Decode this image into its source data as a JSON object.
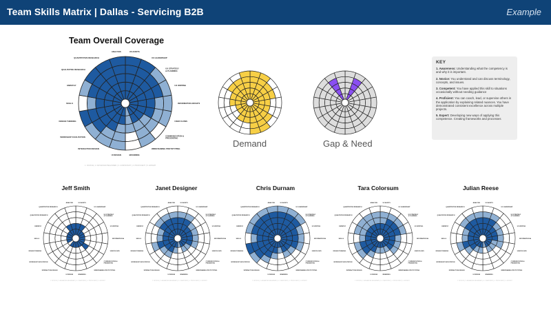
{
  "header": {
    "title": "Team Skills Matrix  |  Dallas - Servicing B2B",
    "example": "Example"
  },
  "coverage": {
    "title": "Team Overall Coverage",
    "legend": "1. NOVICE  |  2. ADVANCED BEGINNER  |  3. COMPETENT  |  4. PROFICIENT  |  5. EXPERT"
  },
  "demand": {
    "caption": "Demand"
  },
  "gap": {
    "caption": "Gap & Need"
  },
  "key": {
    "title": "KEY",
    "items": [
      {
        "head": "1. Awareness:",
        "text": " Understanding what the competency is and why it is important."
      },
      {
        "head": "2. Novice:",
        "text": " You understand and can discuss terminology, concepts, and issues."
      },
      {
        "head": "3. Competent:",
        "text": " You have applied this skill to situations occasionally without needing guidance"
      },
      {
        "head": "4. Proficient:",
        "text": " You can coach, lead, or supervise others in the application by explaining related nuances. You have demonstrated consistent excellence across multiple projects."
      },
      {
        "head": "5. Expert:",
        "text": " Developing new ways of applying this competence. Creating frameworks and processes"
      }
    ]
  },
  "skills": [
    "UX AUDITS",
    "UX LEADERSHIP",
    "UX STRATEGY & PLANNING",
    "UX WRITING",
    "INFORMATION ARCHITECTURE",
    "USER FLOWS",
    "COMMUNICATION & PRESENTING",
    "WIREFRAMING PROTOTYPING",
    "BRANDING",
    "UI DESIGN",
    "INTERACTION DESIGN",
    "WORKSHOP FACILITATION",
    "DESIGN THINKING",
    "SKILLS",
    "EMPATHY",
    "QUALITATIVE RESEARCH",
    "QUANTITATIVE RESEARCH",
    "ANALYSIS"
  ],
  "colors": {
    "dark": "#1e5aa0",
    "light": "#8fb0d3",
    "demand": "#f7cf45",
    "gap": "#dddddd",
    "need": "#8a4ff2"
  },
  "charts": {
    "coverage": {
      "dark": [
        5,
        5,
        4,
        4,
        3,
        3,
        2,
        2,
        0,
        2,
        3,
        4,
        5,
        3,
        4,
        5,
        5,
        5
      ],
      "light": [
        5,
        5,
        5,
        5,
        5,
        5,
        4,
        5,
        3,
        5,
        5,
        5,
        5,
        4,
        5,
        5,
        5,
        5
      ]
    },
    "demand": {
      "levels": [
        5,
        5,
        4,
        4,
        3,
        3,
        4,
        5,
        5,
        3,
        3,
        2,
        2,
        3,
        3,
        4,
        4,
        5
      ]
    },
    "gap": {
      "base": [
        5,
        5,
        5,
        5,
        5,
        5,
        5,
        5,
        5,
        5,
        5,
        5,
        5,
        5,
        5,
        5,
        5,
        5
      ],
      "need": [
        0,
        4,
        0,
        0,
        0,
        0,
        0,
        0,
        0,
        0,
        0,
        0,
        0,
        0,
        0,
        0,
        4,
        0
      ]
    }
  },
  "members": [
    {
      "name": "Jeff Smith",
      "dark": [
        2,
        2,
        1,
        1,
        1,
        1,
        2,
        1,
        1,
        1,
        1,
        0,
        1,
        1,
        1,
        1,
        2,
        2
      ],
      "light": [
        0,
        0,
        0,
        0,
        0,
        0,
        0,
        0,
        0,
        0,
        0,
        0,
        0,
        0,
        0,
        0,
        0,
        0
      ]
    },
    {
      "name": "Janet Designer",
      "dark": [
        3,
        3,
        2,
        2,
        2,
        2,
        1,
        1,
        0,
        1,
        2,
        2,
        3,
        2,
        2,
        3,
        3,
        3
      ],
      "light": [
        4,
        4,
        3,
        3,
        3,
        3,
        2,
        2,
        1,
        2,
        3,
        3,
        4,
        3,
        3,
        4,
        4,
        4
      ]
    },
    {
      "name": "Chris Durnam",
      "dark": [
        4,
        4,
        4,
        3,
        3,
        3,
        2,
        2,
        1,
        2,
        3,
        4,
        5,
        3,
        4,
        4,
        4,
        4
      ],
      "light": [
        5,
        5,
        5,
        4,
        4,
        4,
        3,
        3,
        2,
        3,
        4,
        5,
        5,
        4,
        5,
        5,
        5,
        5
      ]
    },
    {
      "name": "Tara Colorsum",
      "dark": [
        2,
        3,
        3,
        3,
        2,
        2,
        2,
        1,
        1,
        1,
        2,
        3,
        3,
        2,
        2,
        2,
        2,
        2
      ],
      "light": [
        4,
        4,
        4,
        4,
        3,
        3,
        3,
        2,
        2,
        2,
        3,
        4,
        4,
        3,
        4,
        4,
        4,
        4
      ]
    },
    {
      "name": "Julian Reese",
      "dark": [
        3,
        3,
        2,
        2,
        2,
        1,
        1,
        1,
        0,
        1,
        1,
        2,
        3,
        2,
        2,
        3,
        3,
        3
      ],
      "light": [
        4,
        4,
        3,
        3,
        3,
        3,
        2,
        2,
        1,
        2,
        2,
        3,
        4,
        3,
        3,
        4,
        4,
        4
      ]
    }
  ]
}
